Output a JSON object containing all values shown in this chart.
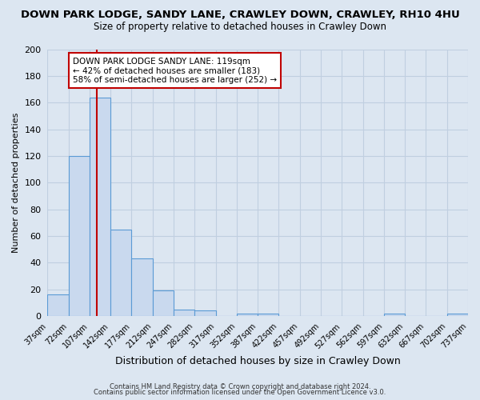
{
  "title": "DOWN PARK LODGE, SANDY LANE, CRAWLEY DOWN, CRAWLEY, RH10 4HU",
  "subtitle": "Size of property relative to detached houses in Crawley Down",
  "xlabel": "Distribution of detached houses by size in Crawley Down",
  "ylabel": "Number of detached properties",
  "bin_edges": [
    37,
    72,
    107,
    142,
    177,
    212,
    247,
    282,
    317,
    352,
    387,
    422,
    457,
    492,
    527,
    562,
    597,
    632,
    667,
    702,
    737
  ],
  "bin_heights": [
    16,
    120,
    164,
    65,
    43,
    19,
    5,
    4,
    0,
    2,
    2,
    0,
    0,
    0,
    0,
    0,
    2,
    0,
    0,
    2
  ],
  "bar_color": "#c9d9ee",
  "bar_edge_color": "#5b9bd5",
  "bg_color": "#dce6f1",
  "plot_bg_color": "#dce6f1",
  "grid_color": "#c0cfe0",
  "property_line_x": 119,
  "property_line_color": "#c00000",
  "annotation_line1": "DOWN PARK LODGE SANDY LANE: 119sqm",
  "annotation_line2": "← 42% of detached houses are smaller (183)",
  "annotation_line3": "58% of semi-detached houses are larger (252) →",
  "annotation_box_color": "#ffffff",
  "annotation_box_edge_color": "#c00000",
  "ylim": [
    0,
    200
  ],
  "yticks": [
    0,
    20,
    40,
    60,
    80,
    100,
    120,
    140,
    160,
    180,
    200
  ],
  "footer1": "Contains HM Land Registry data © Crown copyright and database right 2024.",
  "footer2": "Contains public sector information licensed under the Open Government Licence v3.0."
}
